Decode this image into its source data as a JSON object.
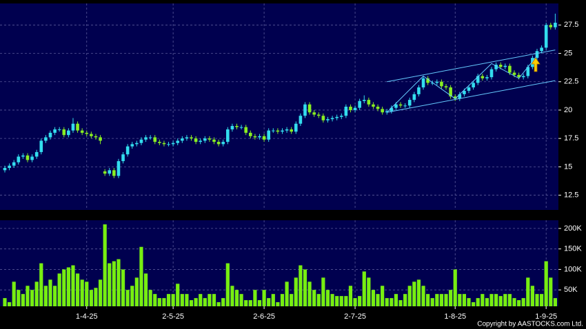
{
  "chart_data": [
    {
      "type": "candlestick",
      "up_color": "#33ddee",
      "down_color": "#88ee22",
      "xlim": [
        -1.06,
        121.7
      ],
      "ylim": [
        11.2,
        29.4
      ],
      "yticks": [
        12.5,
        15,
        17.5,
        20,
        22.5,
        25,
        27.5
      ],
      "grid": true,
      "open": [
        14.7,
        14.9,
        15.1,
        15.4,
        15.9,
        16.0,
        15.6,
        15.9,
        16.3,
        17.3,
        17.6,
        18.0,
        18.3,
        18.3,
        17.8,
        18.2,
        18.8,
        18.2,
        18.0,
        17.9,
        17.7,
        17.6,
        14.6,
        14.4,
        14.7,
        14.2,
        15.5,
        16.1,
        16.8,
        17.0,
        17.1,
        17.4,
        17.6,
        17.6,
        17.2,
        17.1,
        17.0,
        17.0,
        17.1,
        17.3,
        17.5,
        17.6,
        17.5,
        17.2,
        17.3,
        17.5,
        17.4,
        17.2,
        17.0,
        17.2,
        18.3,
        18.6,
        18.5,
        18.5,
        18.0,
        17.7,
        17.6,
        17.7,
        17.4,
        18.2,
        18.2,
        18.1,
        18.2,
        18.3,
        18.1,
        18.8,
        19.5,
        20.5,
        19.8,
        19.6,
        19.5,
        19.1,
        19.2,
        19.3,
        19.4,
        19.5,
        20.3,
        20.0,
        20.2,
        20.8,
        20.9,
        20.5,
        20.3,
        20.1,
        19.8,
        19.9,
        20.2,
        20.5,
        20.4,
        20.4,
        20.9,
        21.4,
        22.0,
        22.8,
        22.4,
        22.4,
        22.5,
        22.1,
        22.0,
        21.2,
        21.0,
        21.4,
        21.7,
        22.0,
        22.4,
        23.0,
        22.8,
        22.9,
        23.6,
        24.0,
        23.8,
        23.9,
        23.3,
        23.1,
        22.9,
        23.0,
        23.8,
        24.6,
        25.2,
        25.5,
        27.5,
        27.3
      ],
      "high": [
        15.1,
        15.3,
        15.6,
        16.1,
        16.2,
        16.2,
        16.1,
        16.5,
        17.5,
        17.8,
        18.2,
        18.5,
        18.5,
        18.5,
        18.4,
        19.3,
        19.0,
        18.4,
        18.2,
        18.1,
        17.9,
        17.8,
        14.8,
        14.9,
        14.9,
        15.7,
        16.3,
        17.0,
        17.2,
        17.3,
        17.6,
        17.8,
        17.8,
        17.8,
        17.4,
        17.3,
        17.2,
        17.3,
        17.5,
        17.7,
        17.8,
        17.8,
        17.7,
        17.5,
        17.7,
        17.7,
        17.6,
        17.4,
        17.4,
        18.5,
        18.8,
        18.8,
        18.7,
        18.7,
        18.2,
        17.9,
        17.9,
        17.9,
        18.4,
        18.4,
        18.4,
        18.4,
        18.5,
        18.5,
        19.0,
        19.7,
        20.7,
        20.7,
        20.0,
        19.8,
        19.7,
        19.4,
        19.5,
        19.6,
        19.7,
        20.5,
        20.5,
        20.4,
        21.0,
        21.3,
        21.1,
        20.7,
        20.5,
        20.3,
        20.1,
        20.4,
        20.7,
        20.7,
        20.6,
        21.1,
        21.6,
        22.2,
        23.0,
        23.0,
        22.6,
        22.7,
        22.7,
        22.3,
        22.2,
        21.4,
        21.6,
        21.9,
        22.2,
        22.6,
        23.2,
        23.2,
        23.1,
        23.8,
        24.2,
        24.2,
        24.1,
        24.1,
        23.5,
        23.3,
        23.2,
        24.0,
        24.8,
        25.4,
        25.7,
        27.7,
        27.7,
        28.5
      ],
      "low": [
        14.5,
        14.7,
        14.9,
        15.2,
        15.7,
        15.4,
        15.4,
        15.7,
        16.1,
        17.1,
        17.4,
        17.8,
        18.1,
        17.6,
        17.6,
        18.0,
        18.0,
        17.8,
        17.7,
        17.5,
        17.4,
        17.0,
        14.2,
        14.2,
        14.0,
        14.0,
        15.3,
        15.9,
        16.6,
        16.8,
        16.9,
        17.2,
        17.4,
        17.0,
        16.9,
        16.8,
        16.8,
        16.8,
        16.9,
        17.1,
        17.3,
        17.3,
        17.0,
        17.0,
        17.1,
        17.2,
        17.0,
        16.8,
        16.8,
        17.0,
        18.1,
        18.3,
        18.3,
        17.8,
        17.5,
        17.4,
        17.4,
        17.2,
        17.2,
        18.0,
        17.9,
        17.9,
        18.0,
        17.9,
        17.9,
        18.6,
        19.3,
        19.6,
        19.4,
        19.3,
        18.9,
        18.9,
        19.0,
        19.1,
        19.2,
        19.3,
        19.8,
        19.8,
        20.0,
        20.6,
        20.3,
        20.1,
        19.9,
        19.6,
        19.6,
        19.7,
        20.0,
        20.2,
        20.2,
        20.2,
        20.7,
        21.2,
        21.8,
        22.2,
        22.2,
        22.2,
        21.9,
        21.8,
        21.0,
        20.8,
        20.8,
        21.2,
        21.5,
        21.8,
        22.2,
        22.6,
        22.6,
        22.7,
        23.4,
        23.6,
        23.6,
        23.1,
        22.9,
        22.7,
        22.7,
        22.8,
        23.6,
        24.4,
        25.0,
        25.3,
        27.1,
        27.1
      ],
      "close": [
        14.9,
        15.1,
        15.4,
        15.9,
        16.0,
        15.6,
        15.9,
        16.3,
        17.3,
        17.6,
        18.0,
        18.3,
        18.3,
        17.8,
        18.2,
        18.8,
        18.2,
        18.0,
        17.9,
        17.7,
        17.6,
        17.3,
        14.4,
        14.7,
        14.2,
        15.5,
        16.1,
        16.8,
        17.0,
        17.1,
        17.4,
        17.6,
        17.6,
        17.2,
        17.1,
        17.0,
        17.0,
        17.1,
        17.3,
        17.5,
        17.6,
        17.5,
        17.2,
        17.3,
        17.5,
        17.4,
        17.2,
        17.0,
        17.2,
        18.3,
        18.6,
        18.5,
        18.5,
        18.0,
        17.7,
        17.6,
        17.7,
        17.4,
        18.2,
        18.2,
        18.1,
        18.2,
        18.3,
        18.1,
        18.8,
        19.5,
        20.5,
        19.8,
        19.6,
        19.5,
        19.1,
        19.2,
        19.3,
        19.4,
        19.5,
        20.3,
        20.0,
        20.2,
        20.8,
        20.9,
        20.5,
        20.3,
        20.1,
        19.8,
        19.9,
        20.2,
        20.5,
        20.4,
        20.4,
        20.9,
        21.4,
        22.0,
        22.8,
        22.4,
        22.4,
        22.5,
        22.1,
        22.0,
        21.2,
        21.0,
        21.4,
        21.7,
        22.0,
        22.4,
        23.0,
        22.8,
        22.9,
        23.6,
        24.0,
        23.8,
        23.9,
        23.3,
        23.1,
        22.9,
        23.0,
        23.8,
        24.6,
        25.2,
        25.5,
        27.5,
        27.3,
        27.7
      ],
      "trendlines": [
        {
          "color": "#66ccff",
          "x": [
            84,
            121
          ],
          "y": [
            19.8,
            22.6
          ]
        },
        {
          "color": "#66ccff",
          "x": [
            84,
            121
          ],
          "y": [
            22.5,
            25.3
          ]
        },
        {
          "color": "#66ccff",
          "x": [
            84,
            92,
            99,
            107,
            113,
            117
          ],
          "y": [
            19.8,
            23.0,
            21.0,
            24.1,
            22.8,
            24.8
          ]
        }
      ]
    },
    {
      "type": "bar",
      "color": "#77ee11",
      "xlim": [
        -1.06,
        121.7
      ],
      "ylim": [
        10000,
        220000
      ],
      "yticks": [
        {
          "value": 50000,
          "label": "50K"
        },
        {
          "value": 100000,
          "label": "100K"
        },
        {
          "value": 150000,
          "label": "150K"
        },
        {
          "value": 200000,
          "label": "200K"
        }
      ],
      "xticks": [
        {
          "value": 18,
          "label": "1-4-25"
        },
        {
          "value": 37,
          "label": "2-5-25"
        },
        {
          "value": 57,
          "label": "2-6-25"
        },
        {
          "value": 77,
          "label": "2-7-25"
        },
        {
          "value": 99,
          "label": "1-8-25"
        },
        {
          "value": 119,
          "label": "1-9-25"
        }
      ],
      "grid": true,
      "values": [
        30000,
        20000,
        70000,
        50000,
        40000,
        60000,
        50000,
        70000,
        115000,
        60000,
        75000,
        60000,
        90000,
        100000,
        105000,
        110000,
        90000,
        75000,
        70000,
        50000,
        55000,
        75000,
        210000,
        115000,
        120000,
        125000,
        100000,
        50000,
        60000,
        80000,
        155000,
        90000,
        50000,
        40000,
        30000,
        30000,
        40000,
        40000,
        65000,
        40000,
        40000,
        25000,
        30000,
        40000,
        30000,
        40000,
        40000,
        20000,
        30000,
        115000,
        60000,
        50000,
        40000,
        25000,
        25000,
        50000,
        25000,
        50000,
        30000,
        40000,
        20000,
        40000,
        70000,
        40000,
        80000,
        110000,
        100000,
        70000,
        50000,
        40000,
        80000,
        50000,
        40000,
        35000,
        35000,
        35000,
        60000,
        30000,
        35000,
        95000,
        80000,
        50000,
        40000,
        60000,
        30000,
        30000,
        40000,
        25000,
        40000,
        60000,
        70000,
        75000,
        60000,
        40000,
        30000,
        40000,
        40000,
        40000,
        50000,
        100000,
        40000,
        40000,
        30000,
        20000,
        30000,
        40000,
        30000,
        40000,
        40000,
        35000,
        40000,
        40000,
        30000,
        25000,
        30000,
        80000,
        60000,
        40000,
        40000,
        120000,
        80000,
        30000
      ]
    }
  ],
  "copyright": "Copyright by AASTOCKS.com Ltd."
}
